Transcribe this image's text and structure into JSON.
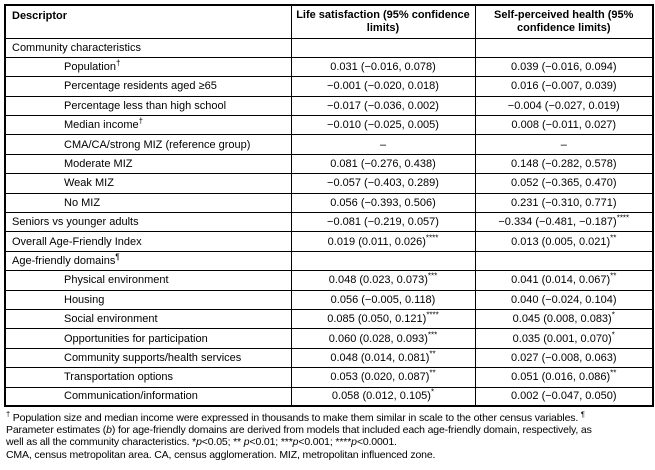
{
  "table": {
    "columns": [
      "Descriptor",
      "Life satisfaction (95% confidence limits)",
      "Self-perceived health (95% confidence limits)"
    ],
    "rows": [
      {
        "label": "Community characteristics",
        "sup": "",
        "indent": false,
        "ls": "",
        "sph": ""
      },
      {
        "label": "Population",
        "sup": "†",
        "indent": true,
        "ls": "0.031 (−0.016, 0.078)",
        "sph": "0.039 (−0.016, 0.094)"
      },
      {
        "label": "Percentage residents aged ≥65",
        "sup": "",
        "indent": true,
        "ls": "−0.001 (−0.020, 0.018)",
        "sph": "0.016 (−0.007, 0.039)"
      },
      {
        "label": "Percentage less than high school",
        "sup": "",
        "indent": true,
        "ls": "−0.017 (−0.036, 0.002)",
        "sph": "−0.004 (−0.027, 0.019)"
      },
      {
        "label": "Median income",
        "sup": "†",
        "indent": true,
        "ls": "−0.010 (−0.025, 0.005)",
        "sph": "0.008 (−0.011, 0.027)"
      },
      {
        "label": "CMA/CA/strong MIZ (reference group)",
        "sup": "",
        "indent": true,
        "ls": "–",
        "sph": "–"
      },
      {
        "label": "Moderate MIZ",
        "sup": "",
        "indent": true,
        "ls": "0.081 (−0.276, 0.438)",
        "sph": "0.148 (−0.282, 0.578)"
      },
      {
        "label": "Weak MIZ",
        "sup": "",
        "indent": true,
        "ls": "−0.057 (−0.403, 0.289)",
        "sph": "0.052 (−0.365, 0.470)"
      },
      {
        "label": "No MIZ",
        "sup": "",
        "indent": true,
        "ls": "0.056 (−0.393, 0.506)",
        "sph": "0.231 (−0.310, 0.771)"
      },
      {
        "label": "Seniors vs younger adults",
        "sup": "",
        "indent": false,
        "ls": "−0.081 (−0.219, 0.057)",
        "sph": "−0.334 (−0.481, −0.187)****"
      },
      {
        "label": "Overall Age-Friendly Index",
        "sup": "",
        "indent": false,
        "ls": "0.019 (0.011, 0.026)****",
        "sph": "0.013 (0.005, 0.021)**"
      },
      {
        "label": "Age-friendly domains",
        "sup": "¶",
        "indent": false,
        "ls": "",
        "sph": ""
      },
      {
        "label": "Physical environment",
        "sup": "",
        "indent": true,
        "ls": "0.048 (0.023, 0.073)***",
        "sph": "0.041 (0.014, 0.067)**"
      },
      {
        "label": "Housing",
        "sup": "",
        "indent": true,
        "ls": "0.056 (−0.005, 0.118)",
        "sph": "0.040 (−0.024, 0.104)"
      },
      {
        "label": "Social environment",
        "sup": "",
        "indent": true,
        "ls": "0.085 (0.050, 0.121)****",
        "sph": "0.045 (0.008, 0.083)*"
      },
      {
        "label": "Opportunities for participation",
        "sup": "",
        "indent": true,
        "ls": "0.060 (0.028, 0.093)***",
        "sph": "0.035 (0.001, 0.070)*"
      },
      {
        "label": "Community supports/health services",
        "sup": "",
        "indent": true,
        "ls": "0.048 (0.014, 0.081)**",
        "sph": "0.027 (−0.008, 0.063)"
      },
      {
        "label": "Transportation options",
        "sup": "",
        "indent": true,
        "ls": "0.053 (0.020, 0.087)**",
        "sph": "0.051 (0.016, 0.086)**"
      },
      {
        "label": "Communication/information",
        "sup": "",
        "indent": true,
        "ls": "0.058 (0.012, 0.105)*",
        "sph": "0.002 (−0.047, 0.050)"
      }
    ]
  },
  "footnotes": {
    "lines": [
      [
        {
          "t": "†",
          "sup": true
        },
        {
          "t": " Population size and median income were expressed in thousands to make them similar in scale to the other census variables. "
        },
        {
          "t": "¶",
          "sup": true
        }
      ],
      [
        {
          "t": "Parameter estimates ("
        },
        {
          "t": "b",
          "i": true
        },
        {
          "t": ") for age-friendly domains are derived from models that included each age-friendly domain, respectively, as"
        }
      ],
      [
        {
          "t": "well as all the community characteristics. *"
        },
        {
          "t": "p",
          "i": true
        },
        {
          "t": "<0.05; ** "
        },
        {
          "t": "p",
          "i": true
        },
        {
          "t": "<0.01; ***"
        },
        {
          "t": "p",
          "i": true
        },
        {
          "t": "<0.001; ****"
        },
        {
          "t": "p",
          "i": true
        },
        {
          "t": "<0.0001."
        }
      ],
      [
        {
          "t": "CMA, census metropolitan area. CA, census agglomeration. MIZ, metropolitan influenced zone."
        }
      ]
    ]
  }
}
